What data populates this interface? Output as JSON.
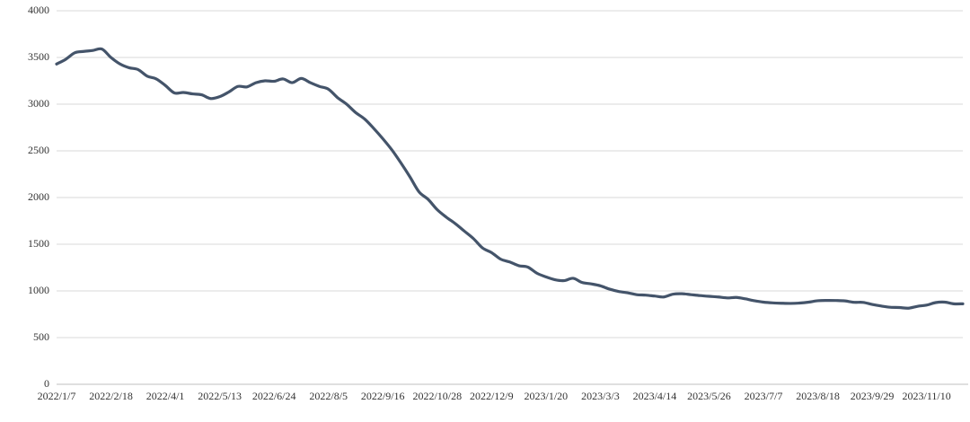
{
  "chart_data": {
    "type": "line",
    "categories": [
      "2022/1/7",
      null,
      null,
      null,
      null,
      null,
      "2022/2/18",
      null,
      null,
      null,
      null,
      null,
      "2022/4/1",
      null,
      null,
      null,
      null,
      null,
      "2022/5/13",
      null,
      null,
      null,
      null,
      null,
      "2022/6/24",
      null,
      null,
      null,
      null,
      null,
      "2022/8/5",
      null,
      null,
      null,
      null,
      null,
      "2022/9/16",
      null,
      null,
      null,
      null,
      null,
      "2022/10/28",
      null,
      null,
      null,
      null,
      null,
      "2022/12/9",
      null,
      null,
      null,
      null,
      null,
      "2023/1/20",
      null,
      null,
      null,
      null,
      null,
      "2023/3/3",
      null,
      null,
      null,
      null,
      null,
      "2023/4/14",
      null,
      null,
      null,
      null,
      null,
      "2023/5/26",
      null,
      null,
      null,
      null,
      null,
      "2023/7/7",
      null,
      null,
      null,
      null,
      null,
      "2023/8/18",
      null,
      null,
      null,
      null,
      null,
      "2023/9/29",
      null,
      null,
      null,
      null,
      null,
      "2023/11/10",
      null,
      null,
      null,
      null
    ],
    "series": [
      {
        "color": "#44546a",
        "values": [
          3430,
          3480,
          3550,
          3565,
          3575,
          3590,
          3500,
          3430,
          3390,
          3370,
          3300,
          3270,
          3200,
          3120,
          3125,
          3110,
          3100,
          3060,
          3080,
          3130,
          3190,
          3185,
          3230,
          3250,
          3245,
          3270,
          3230,
          3275,
          3230,
          3190,
          3160,
          3070,
          3000,
          2910,
          2840,
          2740,
          2630,
          2510,
          2370,
          2220,
          2060,
          1980,
          1870,
          1790,
          1720,
          1640,
          1560,
          1460,
          1410,
          1340,
          1310,
          1270,
          1255,
          1190,
          1150,
          1120,
          1110,
          1135,
          1090,
          1075,
          1055,
          1020,
          995,
          980,
          960,
          955,
          945,
          935,
          965,
          970,
          960,
          950,
          942,
          935,
          925,
          930,
          915,
          895,
          880,
          872,
          868,
          866,
          870,
          880,
          895,
          898,
          897,
          893,
          878,
          877,
          855,
          838,
          825,
          822,
          815,
          835,
          848,
          875,
          880,
          862,
          862
        ]
      }
    ],
    "ylim": [
      0,
      4000
    ],
    "yticks": [
      0,
      500,
      1000,
      1500,
      2000,
      2500,
      3000,
      3500,
      4000
    ],
    "grid": true
  }
}
